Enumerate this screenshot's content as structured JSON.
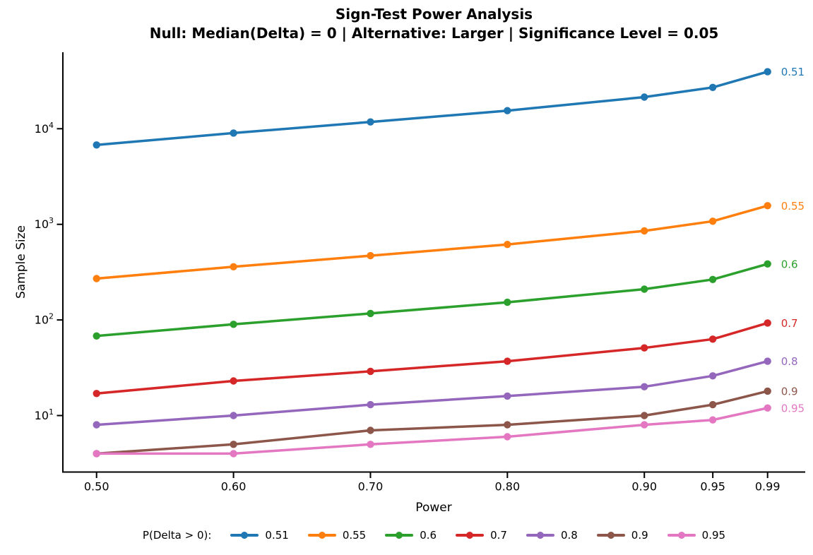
{
  "title": {
    "line1": "Sign-Test Power Analysis",
    "line2": "Null: Median(Delta) = 0 | Alternative: Larger | Significance Level = 0.05"
  },
  "chart_data": {
    "type": "line",
    "title": "Sign-Test Power Analysis",
    "subtitle": "Null: Median(Delta) = 0 | Alternative: Larger | Significance Level = 0.05",
    "xlabel": "Power",
    "ylabel": "Sample Size",
    "yscale": "log",
    "grid": false,
    "legend": {
      "title": "P(Delta > 0):",
      "position": "bottom"
    },
    "x": [
      0.5,
      0.6,
      0.7,
      0.8,
      0.9,
      0.95,
      0.99
    ],
    "x_tick_labels": [
      "0.50",
      "0.60",
      "0.70",
      "0.80",
      "0.90",
      "0.95",
      "0.99"
    ],
    "y_ticks": [
      10,
      100,
      1000,
      10000
    ],
    "y_tick_exponents": [
      1,
      2,
      3,
      4
    ],
    "ylim": [
      3,
      60000
    ],
    "series": [
      {
        "name": "0.51",
        "color": "#1f77b4",
        "values": [
          6765,
          9008,
          11766,
          15458,
          21410,
          27056,
          39426
        ]
      },
      {
        "name": "0.55",
        "color": "#ff7f0e",
        "values": [
          271,
          360,
          470,
          616,
          853,
          1077,
          1568
        ]
      },
      {
        "name": "0.6",
        "color": "#2ca02c",
        "values": [
          68,
          90,
          117,
          153,
          210,
          265,
          385
        ]
      },
      {
        "name": "0.7",
        "color": "#d62728",
        "values": [
          17,
          23,
          29,
          37,
          51,
          63,
          93
        ]
      },
      {
        "name": "0.8",
        "color": "#9467bd",
        "values": [
          8,
          10,
          13,
          16,
          20,
          26,
          37
        ]
      },
      {
        "name": "0.9",
        "color": "#8c564b",
        "values": [
          4,
          5,
          7,
          8,
          10,
          13,
          18
        ]
      },
      {
        "name": "0.95",
        "color": "#e377c2",
        "values": [
          4,
          4,
          5,
          6,
          8,
          9,
          12
        ]
      }
    ]
  }
}
